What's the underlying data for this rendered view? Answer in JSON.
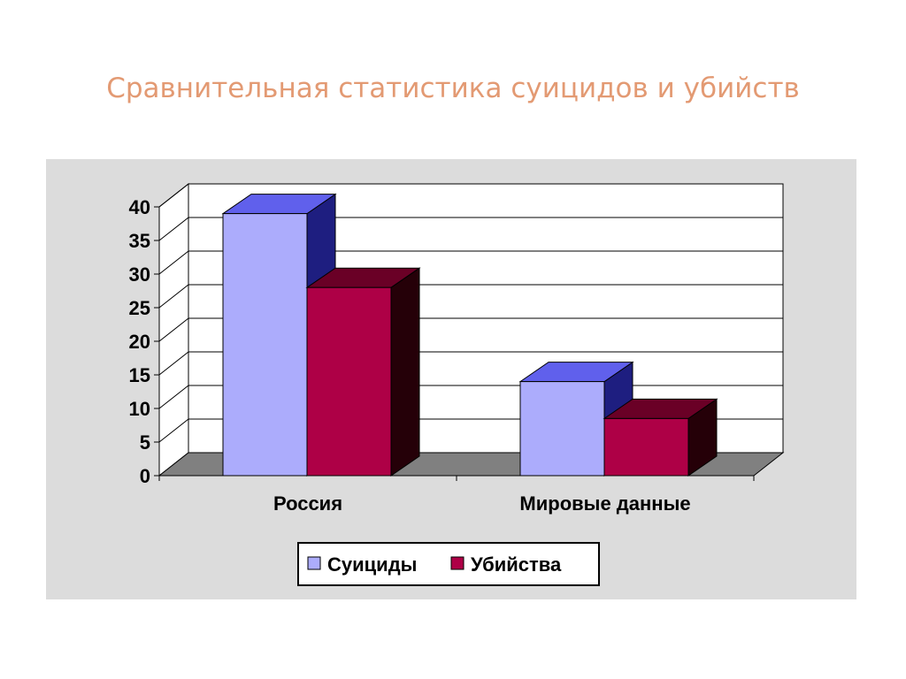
{
  "slide": {
    "title": "Сравнительная статистика суицидов и убийств"
  },
  "colors": {
    "plot_background": "#dcdcdc",
    "wall": "#ffffff",
    "floor": "#808080",
    "suicides_front": "#acacfc",
    "suicides_top": "#6060ec",
    "suicides_side": "#1e1e80",
    "murders_front": "#ae0046",
    "murders_top": "#6a0026",
    "murders_side": "#250008"
  },
  "chart_data": {
    "type": "bar",
    "style": "3d-clustered",
    "title": "",
    "xlabel": "",
    "ylabel": "",
    "categories": [
      "Россия",
      "Мировые данные"
    ],
    "series": [
      {
        "name": "Суициды",
        "values": [
          39,
          14
        ]
      },
      {
        "name": "Убийства",
        "values": [
          28,
          8.5
        ]
      }
    ],
    "ylim": [
      0,
      40
    ],
    "yticks": [
      0,
      5,
      10,
      15,
      20,
      25,
      30,
      35,
      40
    ],
    "grid": true,
    "legend_position": "bottom"
  }
}
